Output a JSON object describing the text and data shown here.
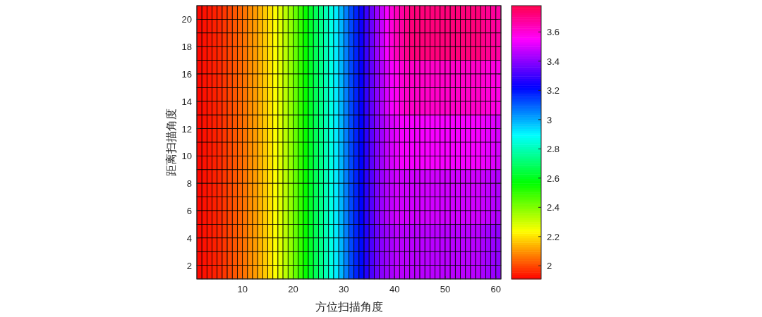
{
  "chart_data": {
    "type": "heatmap",
    "xlabel": "方位扫描角度",
    "ylabel": "距离扫描角度",
    "xlim": [
      1,
      61
    ],
    "xticks": [
      10,
      20,
      30,
      40,
      50,
      60
    ],
    "ylim": [
      1,
      21
    ],
    "yticks": [
      2,
      4,
      6,
      8,
      10,
      12,
      14,
      16,
      18,
      20
    ],
    "clim": [
      1.91,
      3.78
    ],
    "cticks": [
      2,
      2.2,
      2.4,
      2.6,
      2.8,
      3,
      3.2,
      3.4,
      3.6
    ],
    "cells": [
      [
        1.92,
        1.93,
        1.94,
        1.95,
        1.96,
        1.98,
        2.0,
        2.02,
        2.04,
        2.06,
        2.09,
        2.11,
        2.14,
        2.17,
        2.2,
        2.24,
        2.28,
        2.33,
        2.38,
        2.44,
        2.5,
        2.56,
        2.62,
        2.68,
        2.74,
        2.8,
        2.86,
        2.92,
        2.99,
        3.06,
        3.13,
        3.18,
        3.24,
        3.3,
        3.36,
        3.42,
        3.48,
        3.54,
        3.6,
        3.64,
        3.67,
        3.7,
        3.72,
        3.72,
        3.72,
        3.72,
        3.72,
        3.72,
        3.72,
        3.72,
        3.72,
        3.72,
        3.72,
        3.72,
        3.72,
        3.72,
        3.7,
        3.69,
        3.68,
        3.67
      ],
      [
        1.92,
        1.93,
        1.94,
        1.95,
        1.96,
        1.98,
        2.0,
        2.02,
        2.04,
        2.06,
        2.09,
        2.11,
        2.14,
        2.17,
        2.2,
        2.24,
        2.28,
        2.33,
        2.38,
        2.44,
        2.5,
        2.56,
        2.62,
        2.68,
        2.74,
        2.8,
        2.86,
        2.92,
        2.99,
        3.06,
        3.13,
        3.18,
        3.24,
        3.3,
        3.36,
        3.42,
        3.48,
        3.54,
        3.6,
        3.64,
        3.67,
        3.7,
        3.72,
        3.72,
        3.72,
        3.72,
        3.72,
        3.72,
        3.72,
        3.72,
        3.72,
        3.72,
        3.72,
        3.72,
        3.72,
        3.72,
        3.7,
        3.69,
        3.68,
        3.67
      ],
      [
        1.92,
        1.93,
        1.94,
        1.95,
        1.96,
        1.98,
        2.0,
        2.02,
        2.04,
        2.06,
        2.09,
        2.11,
        2.14,
        2.17,
        2.2,
        2.24,
        2.28,
        2.33,
        2.38,
        2.44,
        2.5,
        2.56,
        2.62,
        2.68,
        2.74,
        2.8,
        2.86,
        2.92,
        2.99,
        3.06,
        3.13,
        3.18,
        3.24,
        3.3,
        3.36,
        3.42,
        3.48,
        3.54,
        3.6,
        3.64,
        3.67,
        3.7,
        3.72,
        3.72,
        3.72,
        3.72,
        3.72,
        3.72,
        3.72,
        3.72,
        3.72,
        3.72,
        3.72,
        3.72,
        3.72,
        3.72,
        3.7,
        3.69,
        3.68,
        3.67
      ],
      [
        1.92,
        1.93,
        1.94,
        1.95,
        1.96,
        1.98,
        2.0,
        2.02,
        2.04,
        2.06,
        2.09,
        2.11,
        2.14,
        2.17,
        2.2,
        2.24,
        2.28,
        2.33,
        2.38,
        2.44,
        2.5,
        2.56,
        2.62,
        2.68,
        2.74,
        2.8,
        2.86,
        2.92,
        2.99,
        3.06,
        3.13,
        3.18,
        3.24,
        3.3,
        3.36,
        3.42,
        3.48,
        3.54,
        3.6,
        3.64,
        3.67,
        3.7,
        3.72,
        3.72,
        3.72,
        3.72,
        3.72,
        3.72,
        3.72,
        3.72,
        3.72,
        3.72,
        3.72,
        3.72,
        3.72,
        3.72,
        3.7,
        3.69,
        3.68,
        3.67
      ],
      [
        1.92,
        1.93,
        1.94,
        1.95,
        1.96,
        1.98,
        2.0,
        2.02,
        2.04,
        2.06,
        2.09,
        2.11,
        2.14,
        2.17,
        2.2,
        2.24,
        2.28,
        2.33,
        2.38,
        2.44,
        2.5,
        2.56,
        2.62,
        2.68,
        2.74,
        2.8,
        2.86,
        2.92,
        2.99,
        3.06,
        3.13,
        3.18,
        3.23,
        3.29,
        3.35,
        3.4,
        3.45,
        3.5,
        3.54,
        3.57,
        3.6,
        3.62,
        3.62,
        3.62,
        3.62,
        3.62,
        3.62,
        3.62,
        3.62,
        3.62,
        3.62,
        3.62,
        3.62,
        3.62,
        3.62,
        3.62,
        3.61,
        3.6,
        3.59,
        3.58
      ],
      [
        1.92,
        1.93,
        1.94,
        1.95,
        1.96,
        1.98,
        2.0,
        2.02,
        2.04,
        2.06,
        2.09,
        2.11,
        2.14,
        2.17,
        2.2,
        2.24,
        2.28,
        2.33,
        2.38,
        2.44,
        2.5,
        2.56,
        2.62,
        2.68,
        2.74,
        2.8,
        2.86,
        2.92,
        2.99,
        3.06,
        3.13,
        3.18,
        3.23,
        3.29,
        3.35,
        3.4,
        3.45,
        3.5,
        3.54,
        3.57,
        3.6,
        3.62,
        3.62,
        3.62,
        3.62,
        3.62,
        3.62,
        3.62,
        3.62,
        3.62,
        3.62,
        3.62,
        3.62,
        3.62,
        3.62,
        3.62,
        3.61,
        3.6,
        3.59,
        3.58
      ],
      [
        1.92,
        1.93,
        1.94,
        1.95,
        1.96,
        1.98,
        2.0,
        2.02,
        2.04,
        2.06,
        2.09,
        2.11,
        2.14,
        2.17,
        2.2,
        2.24,
        2.28,
        2.33,
        2.38,
        2.44,
        2.5,
        2.56,
        2.62,
        2.68,
        2.74,
        2.8,
        2.86,
        2.92,
        2.99,
        3.06,
        3.13,
        3.18,
        3.23,
        3.29,
        3.35,
        3.4,
        3.45,
        3.5,
        3.54,
        3.57,
        3.6,
        3.62,
        3.62,
        3.62,
        3.62,
        3.62,
        3.62,
        3.62,
        3.62,
        3.62,
        3.62,
        3.62,
        3.62,
        3.62,
        3.62,
        3.62,
        3.61,
        3.6,
        3.59,
        3.58
      ],
      [
        1.92,
        1.93,
        1.94,
        1.95,
        1.96,
        1.98,
        2.0,
        2.02,
        2.04,
        2.06,
        2.09,
        2.11,
        2.14,
        2.17,
        2.2,
        2.24,
        2.28,
        2.33,
        2.38,
        2.44,
        2.5,
        2.56,
        2.62,
        2.68,
        2.74,
        2.8,
        2.86,
        2.92,
        2.99,
        3.06,
        3.13,
        3.18,
        3.23,
        3.29,
        3.35,
        3.4,
        3.45,
        3.5,
        3.54,
        3.57,
        3.6,
        3.62,
        3.62,
        3.62,
        3.62,
        3.62,
        3.62,
        3.62,
        3.62,
        3.62,
        3.62,
        3.62,
        3.62,
        3.62,
        3.62,
        3.62,
        3.61,
        3.6,
        3.59,
        3.58
      ],
      [
        1.92,
        1.93,
        1.94,
        1.95,
        1.96,
        1.98,
        2.0,
        2.02,
        2.04,
        2.06,
        2.09,
        2.11,
        2.14,
        2.17,
        2.2,
        2.24,
        2.28,
        2.33,
        2.38,
        2.44,
        2.5,
        2.56,
        2.62,
        2.68,
        2.74,
        2.8,
        2.86,
        2.92,
        2.99,
        3.06,
        3.13,
        3.18,
        3.22,
        3.28,
        3.34,
        3.39,
        3.43,
        3.47,
        3.5,
        3.52,
        3.54,
        3.54,
        3.54,
        3.54,
        3.54,
        3.54,
        3.54,
        3.54,
        3.54,
        3.54,
        3.54,
        3.54,
        3.54,
        3.54,
        3.54,
        3.54,
        3.53,
        3.52,
        3.51,
        3.5
      ],
      [
        1.92,
        1.93,
        1.94,
        1.95,
        1.96,
        1.98,
        2.0,
        2.02,
        2.04,
        2.06,
        2.09,
        2.11,
        2.14,
        2.17,
        2.2,
        2.24,
        2.28,
        2.33,
        2.38,
        2.44,
        2.5,
        2.56,
        2.62,
        2.68,
        2.74,
        2.8,
        2.86,
        2.92,
        2.99,
        3.06,
        3.13,
        3.18,
        3.22,
        3.28,
        3.34,
        3.39,
        3.43,
        3.47,
        3.5,
        3.52,
        3.54,
        3.54,
        3.54,
        3.54,
        3.54,
        3.54,
        3.54,
        3.54,
        3.54,
        3.54,
        3.54,
        3.54,
        3.54,
        3.54,
        3.54,
        3.54,
        3.53,
        3.52,
        3.51,
        3.5
      ],
      [
        1.92,
        1.93,
        1.94,
        1.95,
        1.96,
        1.98,
        2.0,
        2.02,
        2.04,
        2.06,
        2.09,
        2.11,
        2.14,
        2.17,
        2.2,
        2.24,
        2.28,
        2.33,
        2.38,
        2.44,
        2.5,
        2.56,
        2.62,
        2.68,
        2.74,
        2.8,
        2.86,
        2.92,
        2.99,
        3.06,
        3.13,
        3.18,
        3.22,
        3.28,
        3.34,
        3.39,
        3.43,
        3.47,
        3.5,
        3.52,
        3.54,
        3.54,
        3.54,
        3.54,
        3.54,
        3.54,
        3.54,
        3.54,
        3.54,
        3.54,
        3.54,
        3.54,
        3.54,
        3.54,
        3.54,
        3.54,
        3.53,
        3.52,
        3.51,
        3.5
      ],
      [
        1.92,
        1.93,
        1.94,
        1.95,
        1.96,
        1.98,
        2.0,
        2.02,
        2.04,
        2.06,
        2.09,
        2.11,
        2.14,
        2.17,
        2.2,
        2.24,
        2.28,
        2.33,
        2.38,
        2.44,
        2.5,
        2.56,
        2.62,
        2.68,
        2.74,
        2.8,
        2.86,
        2.92,
        2.99,
        3.06,
        3.13,
        3.18,
        3.22,
        3.28,
        3.34,
        3.39,
        3.43,
        3.47,
        3.5,
        3.52,
        3.54,
        3.54,
        3.54,
        3.54,
        3.54,
        3.54,
        3.54,
        3.54,
        3.54,
        3.54,
        3.54,
        3.54,
        3.54,
        3.54,
        3.54,
        3.54,
        3.53,
        3.52,
        3.51,
        3.5
      ],
      [
        1.92,
        1.93,
        1.94,
        1.95,
        1.96,
        1.98,
        2.0,
        2.02,
        2.04,
        2.06,
        2.09,
        2.11,
        2.14,
        2.17,
        2.2,
        2.24,
        2.28,
        2.33,
        2.38,
        2.44,
        2.5,
        2.56,
        2.62,
        2.68,
        2.74,
        2.8,
        2.86,
        2.92,
        2.99,
        3.06,
        3.13,
        3.18,
        3.22,
        3.28,
        3.33,
        3.38,
        3.42,
        3.45,
        3.47,
        3.49,
        3.49,
        3.49,
        3.49,
        3.49,
        3.49,
        3.49,
        3.49,
        3.49,
        3.49,
        3.49,
        3.49,
        3.49,
        3.49,
        3.49,
        3.49,
        3.49,
        3.48,
        3.47,
        3.46,
        3.45
      ],
      [
        1.92,
        1.93,
        1.94,
        1.95,
        1.96,
        1.98,
        2.0,
        2.02,
        2.04,
        2.06,
        2.09,
        2.11,
        2.14,
        2.17,
        2.2,
        2.24,
        2.28,
        2.33,
        2.38,
        2.44,
        2.5,
        2.56,
        2.62,
        2.68,
        2.74,
        2.8,
        2.86,
        2.92,
        2.99,
        3.06,
        3.13,
        3.18,
        3.22,
        3.28,
        3.33,
        3.38,
        3.42,
        3.45,
        3.47,
        3.49,
        3.49,
        3.49,
        3.49,
        3.49,
        3.49,
        3.49,
        3.49,
        3.49,
        3.49,
        3.49,
        3.49,
        3.49,
        3.49,
        3.49,
        3.49,
        3.49,
        3.48,
        3.47,
        3.46,
        3.45
      ],
      [
        1.92,
        1.93,
        1.94,
        1.95,
        1.96,
        1.98,
        2.0,
        2.02,
        2.04,
        2.06,
        2.09,
        2.11,
        2.14,
        2.17,
        2.2,
        2.24,
        2.28,
        2.33,
        2.38,
        2.44,
        2.5,
        2.56,
        2.62,
        2.68,
        2.74,
        2.8,
        2.86,
        2.92,
        2.99,
        3.06,
        3.13,
        3.18,
        3.22,
        3.28,
        3.33,
        3.38,
        3.42,
        3.45,
        3.47,
        3.49,
        3.49,
        3.49,
        3.49,
        3.49,
        3.49,
        3.49,
        3.49,
        3.49,
        3.49,
        3.49,
        3.49,
        3.49,
        3.49,
        3.49,
        3.49,
        3.49,
        3.48,
        3.47,
        3.46,
        3.45
      ],
      [
        1.92,
        1.93,
        1.94,
        1.95,
        1.96,
        1.98,
        2.0,
        2.02,
        2.04,
        2.06,
        2.09,
        2.11,
        2.14,
        2.17,
        2.2,
        2.24,
        2.28,
        2.33,
        2.38,
        2.44,
        2.5,
        2.56,
        2.62,
        2.68,
        2.74,
        2.8,
        2.86,
        2.92,
        2.99,
        3.06,
        3.13,
        3.18,
        3.22,
        3.28,
        3.33,
        3.38,
        3.42,
        3.45,
        3.47,
        3.49,
        3.49,
        3.49,
        3.49,
        3.49,
        3.49,
        3.49,
        3.49,
        3.49,
        3.49,
        3.49,
        3.49,
        3.49,
        3.49,
        3.49,
        3.49,
        3.49,
        3.48,
        3.47,
        3.46,
        3.45
      ],
      [
        1.92,
        1.93,
        1.94,
        1.95,
        1.96,
        1.98,
        2.0,
        2.02,
        2.04,
        2.06,
        2.09,
        2.11,
        2.14,
        2.17,
        2.2,
        2.24,
        2.28,
        2.33,
        2.38,
        2.44,
        2.5,
        2.56,
        2.62,
        2.68,
        2.74,
        2.8,
        2.86,
        2.92,
        2.99,
        3.06,
        3.13,
        3.18,
        3.21,
        3.27,
        3.32,
        3.36,
        3.4,
        3.42,
        3.44,
        3.46,
        3.46,
        3.46,
        3.46,
        3.46,
        3.46,
        3.46,
        3.46,
        3.46,
        3.46,
        3.46,
        3.46,
        3.46,
        3.46,
        3.46,
        3.46,
        3.46,
        3.44,
        3.43,
        3.42,
        3.41
      ],
      [
        1.92,
        1.93,
        1.94,
        1.95,
        1.96,
        1.98,
        2.0,
        2.02,
        2.04,
        2.06,
        2.09,
        2.11,
        2.14,
        2.17,
        2.2,
        2.24,
        2.28,
        2.33,
        2.38,
        2.44,
        2.5,
        2.56,
        2.62,
        2.68,
        2.74,
        2.8,
        2.86,
        2.92,
        2.99,
        3.06,
        3.13,
        3.18,
        3.21,
        3.27,
        3.32,
        3.36,
        3.4,
        3.42,
        3.44,
        3.46,
        3.46,
        3.46,
        3.46,
        3.46,
        3.46,
        3.46,
        3.46,
        3.46,
        3.46,
        3.46,
        3.46,
        3.46,
        3.46,
        3.46,
        3.46,
        3.46,
        3.44,
        3.43,
        3.42,
        3.41
      ],
      [
        1.92,
        1.93,
        1.94,
        1.95,
        1.96,
        1.98,
        2.0,
        2.02,
        2.04,
        2.06,
        2.09,
        2.11,
        2.14,
        2.17,
        2.2,
        2.24,
        2.28,
        2.33,
        2.38,
        2.44,
        2.5,
        2.56,
        2.62,
        2.68,
        2.74,
        2.8,
        2.86,
        2.92,
        2.99,
        3.06,
        3.13,
        3.18,
        3.21,
        3.27,
        3.32,
        3.36,
        3.4,
        3.42,
        3.44,
        3.46,
        3.46,
        3.46,
        3.46,
        3.46,
        3.46,
        3.46,
        3.46,
        3.46,
        3.46,
        3.46,
        3.46,
        3.46,
        3.46,
        3.46,
        3.46,
        3.46,
        3.44,
        3.43,
        3.42,
        3.41
      ],
      [
        1.92,
        1.93,
        1.94,
        1.95,
        1.96,
        1.98,
        2.0,
        2.02,
        2.04,
        2.06,
        2.09,
        2.11,
        2.14,
        2.17,
        2.2,
        2.24,
        2.28,
        2.33,
        2.38,
        2.44,
        2.5,
        2.56,
        2.62,
        2.68,
        2.74,
        2.8,
        2.86,
        2.92,
        2.99,
        3.06,
        3.13,
        3.18,
        3.21,
        3.27,
        3.32,
        3.36,
        3.4,
        3.42,
        3.44,
        3.46,
        3.46,
        3.46,
        3.46,
        3.46,
        3.46,
        3.46,
        3.46,
        3.46,
        3.46,
        3.46,
        3.46,
        3.46,
        3.46,
        3.46,
        3.46,
        3.46,
        3.44,
        3.43,
        3.42,
        3.41
      ]
    ]
  }
}
